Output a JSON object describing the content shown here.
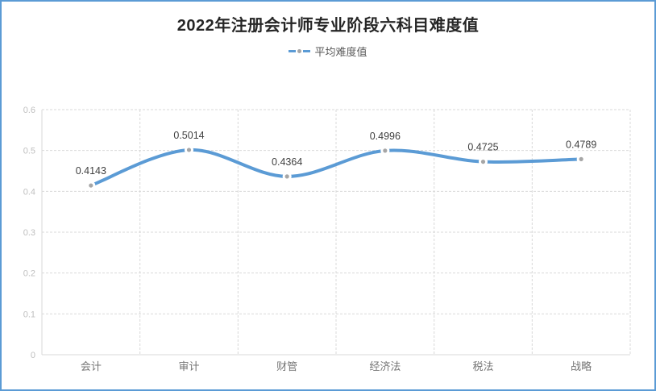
{
  "window": {
    "border_color": "#5b9bd5",
    "background": "#ffffff"
  },
  "header": {
    "title": "2022年注册会计师专业阶段六科目难度值",
    "title_color": "#262626"
  },
  "legend": {
    "label": "平均难度值",
    "text_color": "#595959"
  },
  "chart_data": {
    "type": "line",
    "title": "2022年注册会计师专业阶段六科目难度值",
    "categories": [
      "会计",
      "审计",
      "财管",
      "经济法",
      "税法",
      "战略"
    ],
    "series": [
      {
        "name": "平均难度值",
        "values": [
          0.4143,
          0.5014,
          0.4364,
          0.4996,
          0.4725,
          0.4789
        ]
      }
    ],
    "data_labels": [
      "0.4143",
      "0.5014",
      "0.4364",
      "0.4996",
      "0.4725",
      "0.4789"
    ],
    "xlabel": "",
    "ylabel": "",
    "ylim": [
      0,
      0.6
    ],
    "ytick_step": 0.1,
    "ytick_labels": [
      "0",
      "0.1",
      "0.2",
      "0.3",
      "0.4",
      "0.5",
      "0.6"
    ],
    "grid": "dashed",
    "smooth": true,
    "legend_position": "top-center",
    "line_color": "#5b9bd5",
    "marker_color": "#a6a6a6",
    "data_label_color": "#404040",
    "axis_color": "#d9d9d9",
    "gridline_color": "#d9d9d9",
    "ytick_color": "#bfbfbf",
    "xtick_color": "#757575"
  }
}
